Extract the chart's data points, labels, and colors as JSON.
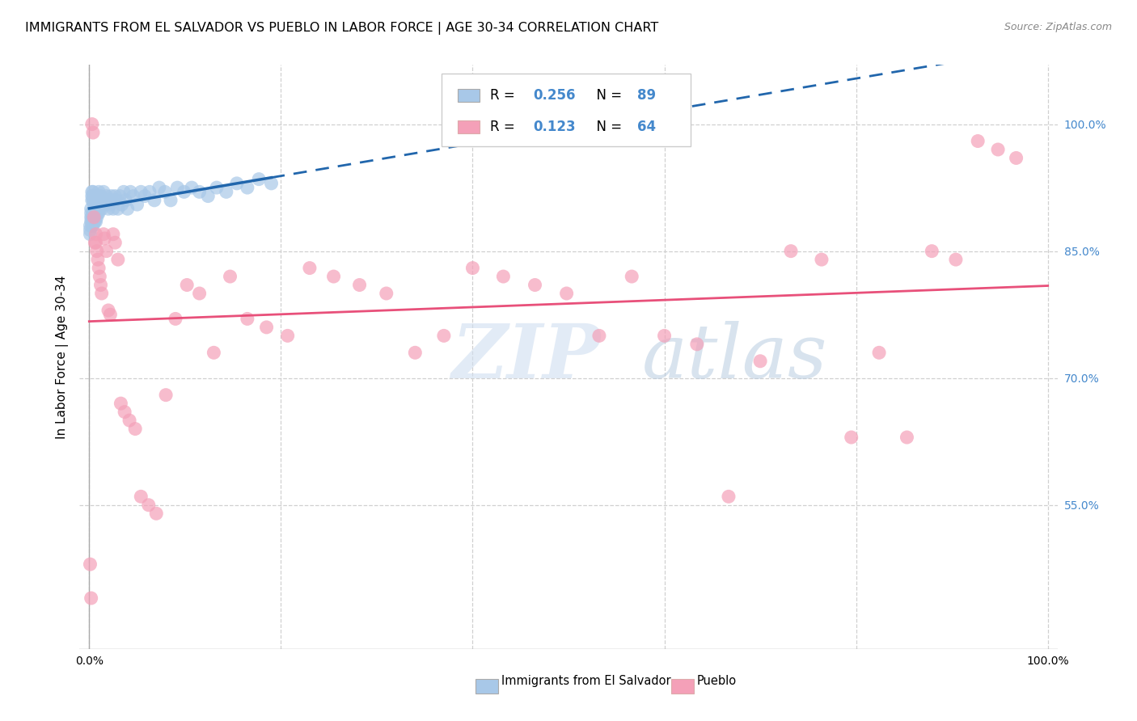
{
  "title": "IMMIGRANTS FROM EL SALVADOR VS PUEBLO IN LABOR FORCE | AGE 30-34 CORRELATION CHART",
  "source": "Source: ZipAtlas.com",
  "ylabel": "In Labor Force | Age 30-34",
  "y_tick_labels": [
    "100.0%",
    "85.0%",
    "70.0%",
    "55.0%"
  ],
  "y_tick_values": [
    1.0,
    0.85,
    0.7,
    0.55
  ],
  "legend_r1": "0.256",
  "legend_n1": "89",
  "legend_r2": "0.123",
  "legend_n2": "64",
  "color_blue": "#a8c8e8",
  "color_pink": "#f4a0b8",
  "color_line_blue": "#2166ac",
  "color_line_pink": "#e8507a",
  "color_ytick": "#4488cc",
  "label_salvador": "Immigrants from El Salvador",
  "label_pueblo": "Pueblo",
  "background_color": "#ffffff",
  "grid_color": "#d0d0d0",
  "watermark_zip": "ZIP",
  "watermark_atlas": "atlas",
  "blue_scatter_x": [
    0.001,
    0.001,
    0.001,
    0.002,
    0.002,
    0.002,
    0.002,
    0.003,
    0.003,
    0.003,
    0.003,
    0.003,
    0.003,
    0.004,
    0.004,
    0.004,
    0.004,
    0.004,
    0.004,
    0.004,
    0.005,
    0.005,
    0.005,
    0.005,
    0.005,
    0.006,
    0.006,
    0.006,
    0.006,
    0.007,
    0.007,
    0.007,
    0.007,
    0.008,
    0.008,
    0.008,
    0.009,
    0.009,
    0.01,
    0.01,
    0.01,
    0.011,
    0.011,
    0.012,
    0.012,
    0.013,
    0.013,
    0.014,
    0.015,
    0.015,
    0.016,
    0.017,
    0.018,
    0.019,
    0.02,
    0.021,
    0.022,
    0.023,
    0.024,
    0.025,
    0.027,
    0.028,
    0.03,
    0.032,
    0.034,
    0.036,
    0.038,
    0.04,
    0.043,
    0.046,
    0.05,
    0.054,
    0.058,
    0.063,
    0.068,
    0.073,
    0.079,
    0.085,
    0.092,
    0.099,
    0.107,
    0.115,
    0.124,
    0.133,
    0.143,
    0.154,
    0.165,
    0.177,
    0.19
  ],
  "blue_scatter_y": [
    0.88,
    0.875,
    0.87,
    0.9,
    0.895,
    0.89,
    0.885,
    0.92,
    0.915,
    0.91,
    0.89,
    0.885,
    0.88,
    0.92,
    0.915,
    0.91,
    0.895,
    0.89,
    0.885,
    0.88,
    0.915,
    0.91,
    0.905,
    0.895,
    0.885,
    0.91,
    0.905,
    0.895,
    0.885,
    0.91,
    0.905,
    0.895,
    0.885,
    0.91,
    0.9,
    0.89,
    0.915,
    0.895,
    0.92,
    0.91,
    0.895,
    0.915,
    0.905,
    0.915,
    0.905,
    0.91,
    0.9,
    0.91,
    0.92,
    0.905,
    0.91,
    0.905,
    0.915,
    0.91,
    0.9,
    0.91,
    0.905,
    0.915,
    0.91,
    0.9,
    0.915,
    0.91,
    0.9,
    0.915,
    0.905,
    0.92,
    0.91,
    0.9,
    0.92,
    0.915,
    0.905,
    0.92,
    0.915,
    0.92,
    0.91,
    0.925,
    0.92,
    0.91,
    0.925,
    0.92,
    0.925,
    0.92,
    0.915,
    0.925,
    0.92,
    0.93,
    0.925,
    0.935,
    0.93
  ],
  "pink_scatter_x": [
    0.001,
    0.002,
    0.003,
    0.004,
    0.005,
    0.006,
    0.007,
    0.007,
    0.008,
    0.009,
    0.01,
    0.011,
    0.012,
    0.013,
    0.015,
    0.016,
    0.018,
    0.02,
    0.022,
    0.025,
    0.027,
    0.03,
    0.033,
    0.037,
    0.042,
    0.048,
    0.054,
    0.062,
    0.07,
    0.08,
    0.09,
    0.102,
    0.115,
    0.13,
    0.147,
    0.165,
    0.185,
    0.207,
    0.23,
    0.255,
    0.282,
    0.31,
    0.34,
    0.37,
    0.4,
    0.432,
    0.465,
    0.498,
    0.532,
    0.566,
    0.6,
    0.634,
    0.667,
    0.7,
    0.732,
    0.764,
    0.795,
    0.824,
    0.853,
    0.879,
    0.904,
    0.927,
    0.948,
    0.967
  ],
  "pink_scatter_y": [
    0.48,
    0.44,
    1.0,
    0.99,
    0.89,
    0.86,
    0.87,
    0.86,
    0.85,
    0.84,
    0.83,
    0.82,
    0.81,
    0.8,
    0.87,
    0.865,
    0.85,
    0.78,
    0.775,
    0.87,
    0.86,
    0.84,
    0.67,
    0.66,
    0.65,
    0.64,
    0.56,
    0.55,
    0.54,
    0.68,
    0.77,
    0.81,
    0.8,
    0.73,
    0.82,
    0.77,
    0.76,
    0.75,
    0.83,
    0.82,
    0.81,
    0.8,
    0.73,
    0.75,
    0.83,
    0.82,
    0.81,
    0.8,
    0.75,
    0.82,
    0.75,
    0.74,
    0.56,
    0.72,
    0.85,
    0.84,
    0.63,
    0.73,
    0.63,
    0.85,
    0.84,
    0.98,
    0.97,
    0.96
  ]
}
